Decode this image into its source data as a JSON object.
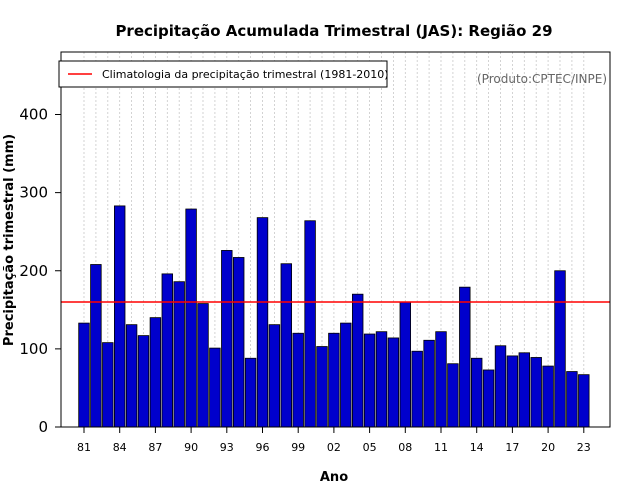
{
  "chart_data": {
    "type": "bar",
    "title": "Precipitação Acumulada Trimestral (JAS): Região 29",
    "xlabel": "Ano",
    "ylabel": "Precipitação trimestral (mm)",
    "ylim": [
      0,
      480
    ],
    "yticks": [
      0,
      100,
      200,
      300,
      400
    ],
    "years": [
      1981,
      1982,
      1983,
      1984,
      1985,
      1986,
      1987,
      1988,
      1989,
      1990,
      1991,
      1992,
      1993,
      1994,
      1995,
      1996,
      1997,
      1998,
      1999,
      2000,
      2001,
      2002,
      2003,
      2004,
      2005,
      2006,
      2007,
      2008,
      2009,
      2010,
      2011,
      2012,
      2013,
      2014,
      2015,
      2016,
      2017,
      2018,
      2019,
      2020,
      2021,
      2022,
      2023
    ],
    "xtick_labels": [
      "81",
      "84",
      "87",
      "90",
      "93",
      "96",
      "99",
      "02",
      "05",
      "08",
      "11",
      "14",
      "17",
      "20",
      "23"
    ],
    "values": [
      133,
      208,
      108,
      283,
      131,
      117,
      140,
      196,
      186,
      279,
      158,
      101,
      226,
      217,
      88,
      268,
      131,
      209,
      120,
      264,
      103,
      120,
      133,
      170,
      119,
      122,
      114,
      160,
      97,
      111,
      122,
      81,
      179,
      88,
      73,
      104,
      91,
      95,
      89,
      78,
      200,
      71,
      67
    ],
    "bar_color": "#0000cc",
    "reference_line": {
      "value": 160,
      "color": "#ff0000",
      "label": "Climatologia da precipitação trimestral (1981-2010)"
    },
    "credit": "(Produto:CPTEC/INPE)",
    "grid": "vertical dotted"
  }
}
